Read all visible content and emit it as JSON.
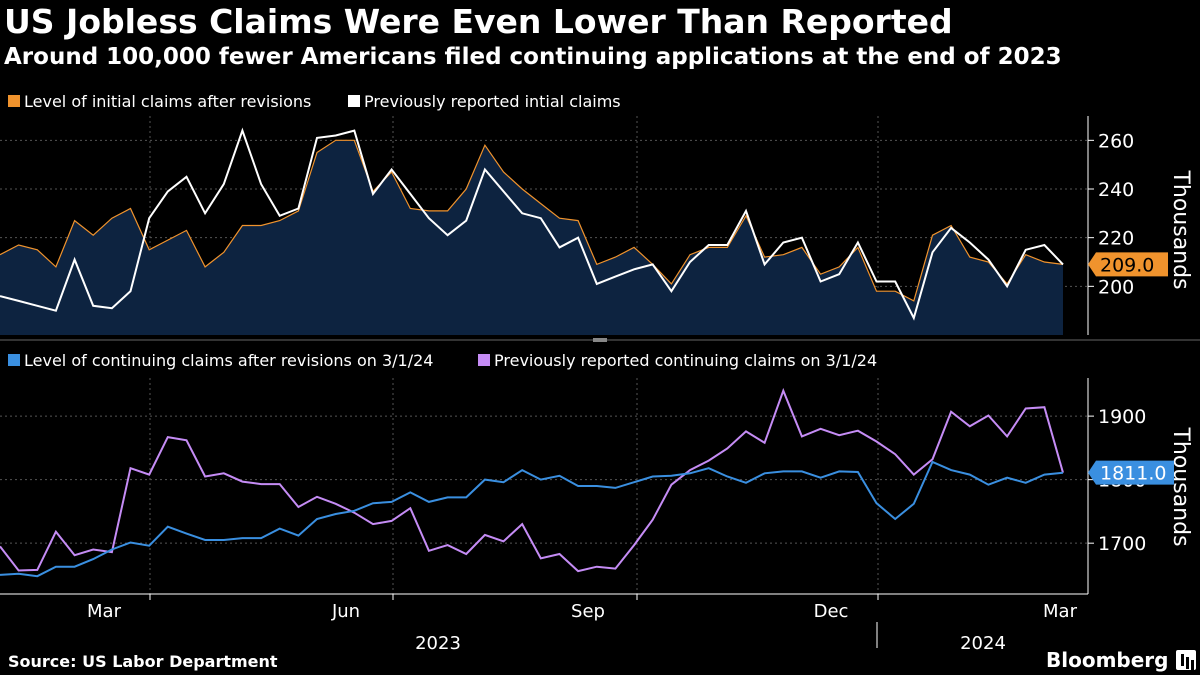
{
  "header": {
    "title": "US Jobless Claims Were Even Lower Than Reported",
    "subtitle": "Around 100,000 fewer Americans filed continuing applications at the end of 2023"
  },
  "footer": {
    "source": "Source: US Labor Department",
    "brand": "Bloomberg"
  },
  "colors": {
    "background": "#000000",
    "revised_initial": "#f0932d",
    "revised_initial_fill": "#0d2340",
    "previous_initial": "#ffffff",
    "revised_continuing": "#3a8fe0",
    "previous_continuing": "#c58cf5",
    "grid": "#555555"
  },
  "chart_data": [
    {
      "type": "area",
      "unit_label": "Thousands",
      "ylim": [
        180,
        270
      ],
      "yticks": [
        200,
        220,
        240,
        260
      ],
      "grid": true,
      "legend_position": "top-left",
      "end_label": "209.0",
      "series": [
        {
          "name": "Level of initial claims after revisions",
          "values": [
            213,
            217,
            215,
            208,
            227,
            221,
            228,
            232,
            215,
            219,
            223,
            208,
            214,
            225,
            225,
            227,
            231,
            255,
            260,
            260,
            239,
            247,
            232,
            231,
            231,
            240,
            258,
            247,
            240,
            234,
            228,
            227,
            209,
            212,
            216,
            209,
            201,
            213,
            216,
            216,
            229,
            212,
            213,
            216,
            205,
            208,
            216,
            198,
            198,
            194,
            221,
            225,
            212,
            210,
            201,
            213,
            210,
            209
          ]
        },
        {
          "name": "Previously reported intial claims",
          "values": [
            196,
            194,
            192,
            190,
            211,
            192,
            191,
            198,
            228,
            239,
            245,
            230,
            242,
            264,
            242,
            229,
            232,
            261,
            262,
            264,
            238,
            248,
            238,
            228,
            221,
            227,
            248,
            239,
            230,
            228,
            216,
            220,
            201,
            204,
            207,
            209,
            198,
            210,
            217,
            217,
            231,
            209,
            218,
            220,
            202,
            205,
            218,
            202,
            202,
            187,
            214,
            224,
            218,
            211,
            200,
            215,
            217,
            209
          ]
        }
      ]
    },
    {
      "type": "line",
      "unit_label": "Thousands",
      "ylim": [
        1620,
        1960
      ],
      "yticks": [
        1700,
        1800,
        1900
      ],
      "grid": true,
      "legend_position": "top-left",
      "end_label": "1811.0",
      "x_labels": [
        "Mar",
        "Jun",
        "Sep",
        "Dec",
        "Mar"
      ],
      "year_labels": [
        "2023",
        "2024"
      ],
      "series": [
        {
          "name": "Level of continuing claims after revisions on 3/1/24",
          "values": [
            1650,
            1652,
            1648,
            1663,
            1663,
            1675,
            1690,
            1701,
            1696,
            1726,
            1715,
            1705,
            1705,
            1708,
            1708,
            1723,
            1712,
            1738,
            1746,
            1751,
            1763,
            1765,
            1780,
            1765,
            1772,
            1772,
            1800,
            1796,
            1815,
            1800,
            1806,
            1790,
            1790,
            1787,
            1796,
            1805,
            1806,
            1810,
            1818,
            1805,
            1795,
            1810,
            1813,
            1813,
            1803,
            1813,
            1812,
            1763,
            1738,
            1762,
            1828,
            1815,
            1808,
            1792,
            1803,
            1795,
            1808,
            1811
          ]
        },
        {
          "name": "Previously reported continuing claims on 3/1/24",
          "values": [
            1695,
            1657,
            1658,
            1718,
            1681,
            1690,
            1686,
            1818,
            1808,
            1867,
            1862,
            1805,
            1810,
            1797,
            1793,
            1793,
            1757,
            1773,
            1762,
            1748,
            1730,
            1735,
            1755,
            1688,
            1697,
            1683,
            1713,
            1703,
            1730,
            1676,
            1683,
            1656,
            1663,
            1660,
            1697,
            1737,
            1792,
            1815,
            1830,
            1849,
            1876,
            1858,
            1940,
            1868,
            1880,
            1870,
            1877,
            1860,
            1840,
            1808,
            1832,
            1907,
            1884,
            1901,
            1868,
            1912,
            1914,
            1811
          ]
        }
      ]
    }
  ]
}
